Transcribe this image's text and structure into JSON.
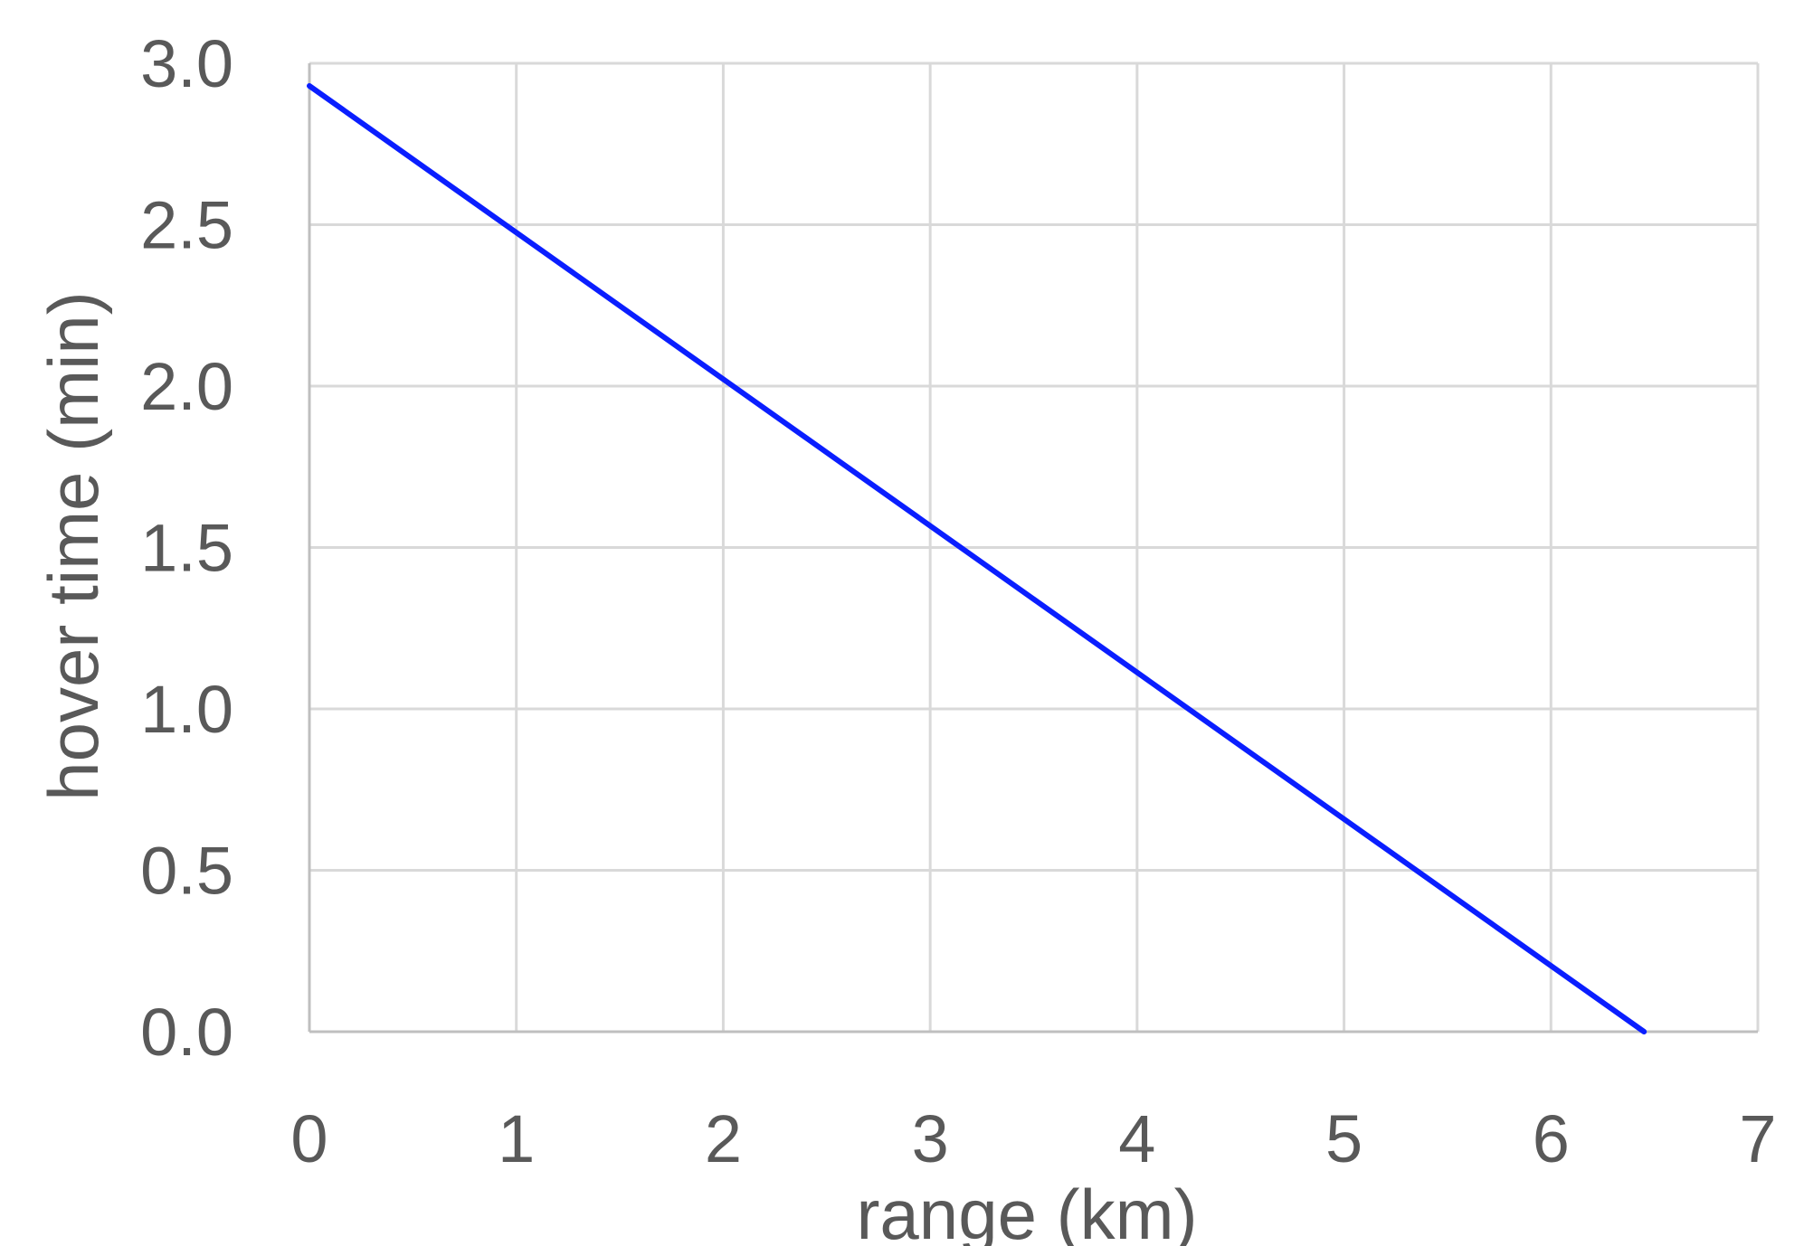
{
  "chart_data": {
    "type": "line",
    "title": "",
    "xlabel": "range (km)",
    "ylabel": "hover time (min)",
    "xlim": [
      0,
      7
    ],
    "ylim": [
      0,
      3
    ],
    "x_ticks": [
      "0",
      "1",
      "2",
      "3",
      "4",
      "5",
      "6",
      "7"
    ],
    "y_ticks": [
      "0.0",
      "0.5",
      "1.0",
      "1.5",
      "2.0",
      "2.5",
      "3.0"
    ],
    "grid": true,
    "legend": "none",
    "series": [
      {
        "color": "#0a1eff",
        "x": [
          0,
          6.45
        ],
        "y": [
          2.93,
          0
        ]
      }
    ]
  }
}
